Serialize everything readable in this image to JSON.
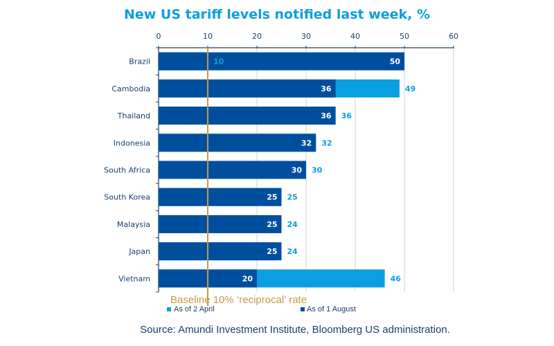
{
  "chart_data": {
    "type": "bar",
    "orientation": "horizontal",
    "title": "New US tariff levels notified last week, %",
    "categories": [
      "Brazil",
      "Cambodia",
      "Thailand",
      "Indonesia",
      "South Africa",
      "South Korea",
      "Malaysia",
      "Japan",
      "Vietnam"
    ],
    "series": [
      {
        "name": "As of 2 April",
        "color": "#0a9fe0",
        "values": [
          10,
          49,
          36,
          32,
          30,
          25,
          24,
          24,
          46
        ]
      },
      {
        "name": "As of 1 August",
        "color": "#004f9f",
        "values": [
          50,
          36,
          36,
          32,
          30,
          25,
          25,
          25,
          20
        ]
      }
    ],
    "xlim": [
      0,
      60
    ],
    "xticks": [
      0,
      10,
      20,
      30,
      40,
      50,
      60
    ],
    "grid": true,
    "axis_position": "top",
    "legend_position": "bottom",
    "reference_line": {
      "value": 10,
      "label": "Baseline 10% ‘reciprocal’ rate",
      "color": "#c8974a"
    },
    "source": "Source: Amundi Investment Institute,  Bloomberg US administration."
  }
}
